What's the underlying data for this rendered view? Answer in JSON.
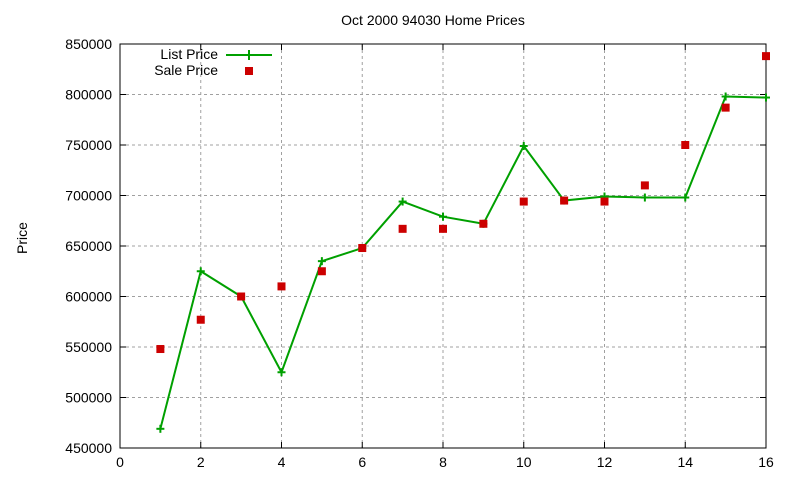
{
  "chart_data": {
    "type": "line",
    "title": "Oct 2000 94030 Home Prices",
    "xlabel": "",
    "ylabel": "Price",
    "xlim": [
      0,
      16
    ],
    "ylim": [
      450000,
      850000
    ],
    "x_ticks": [
      0,
      2,
      4,
      6,
      8,
      10,
      12,
      14,
      16
    ],
    "y_ticks": [
      450000,
      500000,
      550000,
      600000,
      650000,
      700000,
      750000,
      800000,
      850000
    ],
    "grid": true,
    "legend_position": "top-left",
    "x": [
      1,
      2,
      3,
      4,
      5,
      6,
      7,
      8,
      9,
      10,
      11,
      12,
      13,
      14,
      15,
      16
    ],
    "series": [
      {
        "name": "List Price",
        "style": "linespoints",
        "color": "#00a000",
        "marker": "plus",
        "values": [
          469000,
          625000,
          600000,
          525000,
          635000,
          648000,
          694000,
          679000,
          672000,
          749000,
          695000,
          699000,
          698000,
          698000,
          798000,
          797000
        ]
      },
      {
        "name": "Sale Price",
        "style": "points",
        "color": "#cc0000",
        "marker": "square",
        "values": [
          548000,
          577000,
          600000,
          610000,
          625000,
          648000,
          667000,
          667000,
          672000,
          694000,
          695000,
          694000,
          710000,
          750000,
          787000,
          838000
        ]
      }
    ]
  }
}
